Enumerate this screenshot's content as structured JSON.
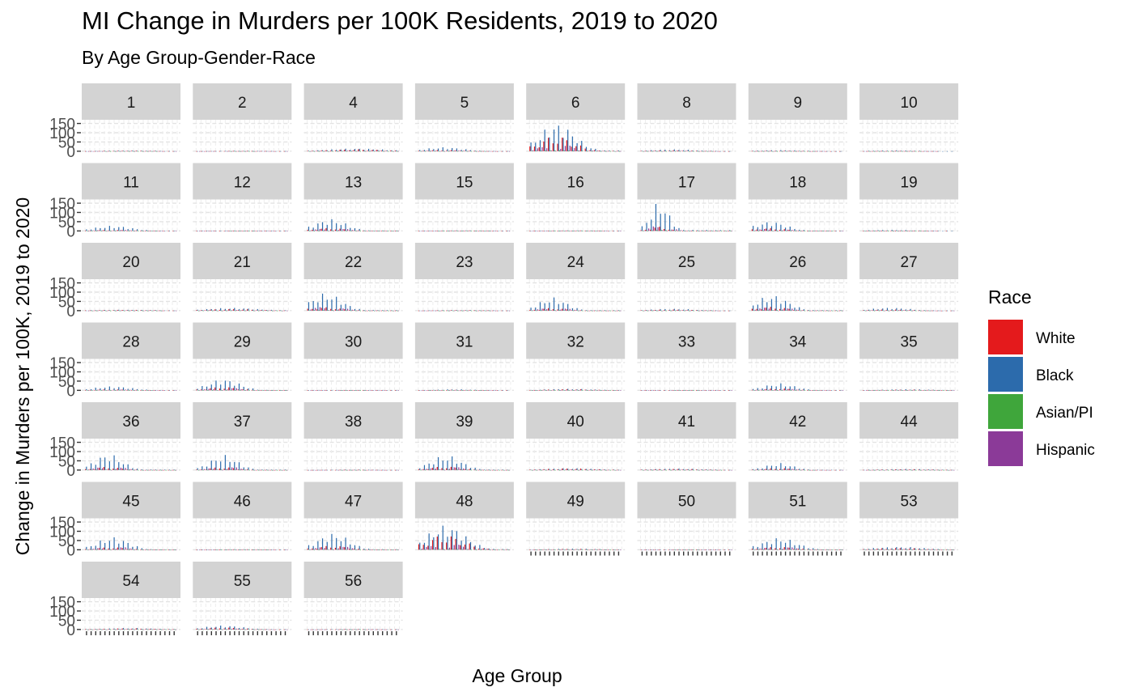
{
  "chart_data": {
    "type": "bar",
    "faceted": true,
    "title": "MI Change in Murders per 100K Residents, 2019 to 2020",
    "subtitle": "By Age Group-Gender-Race",
    "xlabel": "Age Group",
    "ylabel": "Change in Murders per 100K, 2019 to 2020",
    "ylim": [
      -5,
      170
    ],
    "yticks": [
      0,
      50,
      100,
      150
    ],
    "grid": true,
    "legend": {
      "title": "Race",
      "position": "right",
      "entries": [
        {
          "name": "White",
          "color": "#E41A1C"
        },
        {
          "name": "Black",
          "color": "#2C6BAC"
        },
        {
          "name": "Asian/PI",
          "color": "#3FA63B"
        },
        {
          "name": "Hispanic",
          "color": "#8B3A98"
        }
      ]
    },
    "panels": [
      {
        "label": "1",
        "peak": 4,
        "pos": 0.5,
        "wid": 0.35,
        "white": 0.8,
        "tail": 0.4
      },
      {
        "label": "2",
        "peak": 2,
        "pos": 0.5,
        "wid": 0.4,
        "white": 0.8,
        "tail": 0.3
      },
      {
        "label": "4",
        "peak": 15,
        "pos": 0.55,
        "wid": 0.45,
        "white": 0.7,
        "tail": 0.5
      },
      {
        "label": "5",
        "peak": 22,
        "pos": 0.28,
        "wid": 0.3,
        "white": 0.3,
        "tail": 0.25
      },
      {
        "label": "6",
        "peak": 152,
        "pos": 0.3,
        "wid": 0.28,
        "white": 0.55,
        "tail": 0.12
      },
      {
        "label": "8",
        "peak": 10,
        "pos": 0.35,
        "wid": 0.35,
        "white": 0.5,
        "tail": 0.3
      },
      {
        "label": "9",
        "peak": 6,
        "pos": 0.3,
        "wid": 0.35,
        "white": 0.4,
        "tail": 0.3
      },
      {
        "label": "10",
        "peak": 5,
        "pos": 0.35,
        "wid": 0.3,
        "white": 0.3,
        "tail": 0.2
      },
      {
        "label": "11",
        "peak": 28,
        "pos": 0.3,
        "wid": 0.3,
        "white": 0.2,
        "tail": 0.2
      },
      {
        "label": "12",
        "peak": 2,
        "pos": 0.5,
        "wid": 0.4,
        "white": 0.8,
        "tail": 0.3
      },
      {
        "label": "13",
        "peak": 65,
        "pos": 0.25,
        "wid": 0.25,
        "white": 0.25,
        "tail": 0.1
      },
      {
        "label": "15",
        "peak": 3,
        "pos": 0.5,
        "wid": 0.4,
        "white": 0.8,
        "tail": 0.3
      },
      {
        "label": "16",
        "peak": 3,
        "pos": 0.5,
        "wid": 0.4,
        "white": 0.8,
        "tail": 0.3
      },
      {
        "label": "17",
        "peak": 158,
        "pos": 0.2,
        "wid": 0.15,
        "white": 0.15,
        "tail": 0.05
      },
      {
        "label": "18",
        "peak": 52,
        "pos": 0.2,
        "wid": 0.25,
        "white": 0.3,
        "tail": 0.12
      },
      {
        "label": "19",
        "peak": 6,
        "pos": 0.3,
        "wid": 0.35,
        "white": 0.3,
        "tail": 0.3
      },
      {
        "label": "20",
        "peak": 5,
        "pos": 0.45,
        "wid": 0.4,
        "white": 0.9,
        "tail": 0.4
      },
      {
        "label": "21",
        "peak": 15,
        "pos": 0.4,
        "wid": 0.4,
        "white": 0.6,
        "tail": 0.5
      },
      {
        "label": "22",
        "peak": 95,
        "pos": 0.2,
        "wid": 0.25,
        "white": 0.2,
        "tail": 0.15
      },
      {
        "label": "23",
        "peak": 3,
        "pos": 0.5,
        "wid": 0.4,
        "white": 0.8,
        "tail": 0.3
      },
      {
        "label": "24",
        "peak": 72,
        "pos": 0.25,
        "wid": 0.22,
        "white": 0.2,
        "tail": 0.08
      },
      {
        "label": "25",
        "peak": 10,
        "pos": 0.35,
        "wid": 0.35,
        "white": 0.6,
        "tail": 0.3
      },
      {
        "label": "26",
        "peak": 85,
        "pos": 0.22,
        "wid": 0.25,
        "white": 0.25,
        "tail": 0.1
      },
      {
        "label": "27",
        "peak": 16,
        "pos": 0.3,
        "wid": 0.3,
        "white": 0.4,
        "tail": 0.15
      },
      {
        "label": "28",
        "peak": 22,
        "pos": 0.3,
        "wid": 0.3,
        "white": 0.25,
        "tail": 0.1
      },
      {
        "label": "29",
        "peak": 62,
        "pos": 0.3,
        "wid": 0.25,
        "white": 0.3,
        "tail": 0.12
      },
      {
        "label": "30",
        "peak": 2,
        "pos": 0.5,
        "wid": 0.4,
        "white": 0.8,
        "tail": 0.3
      },
      {
        "label": "31",
        "peak": 6,
        "pos": 0.4,
        "wid": 0.3,
        "white": 0.5,
        "tail": 0.3
      },
      {
        "label": "32",
        "peak": 8,
        "pos": 0.45,
        "wid": 0.4,
        "white": 0.8,
        "tail": 0.5
      },
      {
        "label": "33",
        "peak": 2,
        "pos": 0.5,
        "wid": 0.4,
        "white": 0.8,
        "tail": 0.3
      },
      {
        "label": "34",
        "peak": 38,
        "pos": 0.3,
        "wid": 0.25,
        "white": 0.3,
        "tail": 0.15
      },
      {
        "label": "35",
        "peak": 6,
        "pos": 0.5,
        "wid": 0.4,
        "white": 0.7,
        "tail": 0.5
      },
      {
        "label": "36",
        "peak": 88,
        "pos": 0.25,
        "wid": 0.22,
        "white": 0.2,
        "tail": 0.1
      },
      {
        "label": "37",
        "peak": 82,
        "pos": 0.3,
        "wid": 0.22,
        "white": 0.2,
        "tail": 0.1
      },
      {
        "label": "38",
        "peak": 2,
        "pos": 0.5,
        "wid": 0.4,
        "white": 0.8,
        "tail": 0.3
      },
      {
        "label": "39",
        "peak": 80,
        "pos": 0.3,
        "wid": 0.25,
        "white": 0.25,
        "tail": 0.1
      },
      {
        "label": "40",
        "peak": 10,
        "pos": 0.45,
        "wid": 0.4,
        "white": 0.9,
        "tail": 0.5
      },
      {
        "label": "41",
        "peak": 8,
        "pos": 0.4,
        "wid": 0.4,
        "white": 0.8,
        "tail": 0.5
      },
      {
        "label": "42",
        "peak": 38,
        "pos": 0.3,
        "wid": 0.22,
        "white": 0.3,
        "tail": 0.12
      },
      {
        "label": "44",
        "peak": 6,
        "pos": 0.5,
        "wid": 0.4,
        "white": 0.8,
        "tail": 0.5
      },
      {
        "label": "45",
        "peak": 70,
        "pos": 0.3,
        "wid": 0.25,
        "white": 0.2,
        "tail": 0.1
      },
      {
        "label": "46",
        "peak": 3,
        "pos": 0.5,
        "wid": 0.4,
        "white": 0.8,
        "tail": 0.3
      },
      {
        "label": "47",
        "peak": 90,
        "pos": 0.28,
        "wid": 0.25,
        "white": 0.25,
        "tail": 0.1
      },
      {
        "label": "48",
        "peak": 135,
        "pos": 0.3,
        "wid": 0.3,
        "white": 0.6,
        "tail": 0.15
      },
      {
        "label": "49",
        "peak": 6,
        "pos": 0.5,
        "wid": 0.4,
        "white": 0.8,
        "tail": 0.5
      },
      {
        "label": "50",
        "peak": 2,
        "pos": 0.5,
        "wid": 0.4,
        "white": 0.8,
        "tail": 0.3
      },
      {
        "label": "51",
        "peak": 65,
        "pos": 0.3,
        "wid": 0.28,
        "white": 0.25,
        "tail": 0.12
      },
      {
        "label": "53",
        "peak": 16,
        "pos": 0.4,
        "wid": 0.4,
        "white": 0.6,
        "tail": 0.5
      },
      {
        "label": "54",
        "peak": 8,
        "pos": 0.5,
        "wid": 0.4,
        "white": 0.8,
        "tail": 0.5
      },
      {
        "label": "55",
        "peak": 22,
        "pos": 0.3,
        "wid": 0.3,
        "white": 0.5,
        "tail": 0.3
      },
      {
        "label": "56",
        "peak": 2,
        "pos": 0.5,
        "wid": 0.4,
        "white": 0.8,
        "tail": 0.3
      }
    ]
  }
}
